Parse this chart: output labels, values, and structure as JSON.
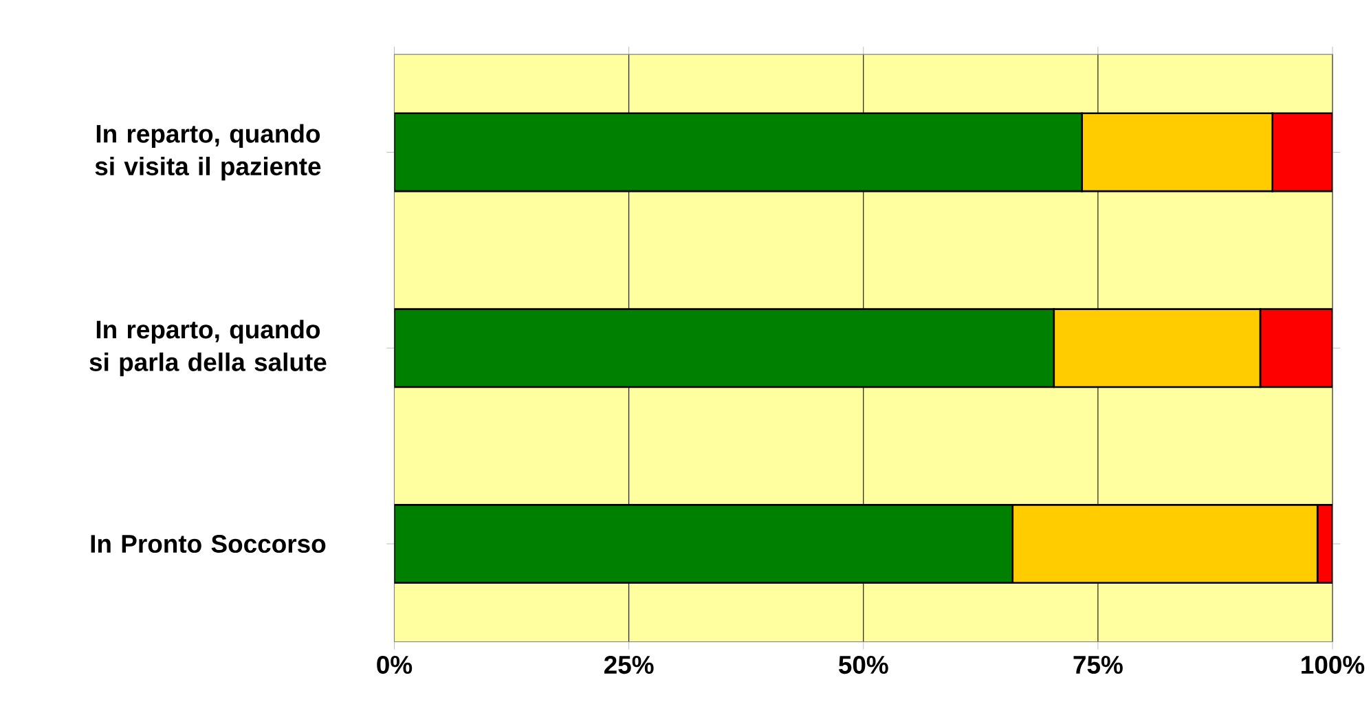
{
  "chart_data": {
    "type": "bar",
    "orientation": "horizontal",
    "stacked": true,
    "categories": [
      "In reparto, quando si visita il paziente",
      "In reparto, quando si parla della salute",
      "In Pronto Soccorso"
    ],
    "series": [
      {
        "color": "#008000",
        "values": [
          73.3,
          70.3,
          65.9
        ]
      },
      {
        "color": "#ffcc00",
        "values": [
          20.3,
          22.0,
          32.5
        ]
      },
      {
        "color": "#ff0000",
        "values": [
          6.4,
          7.7,
          1.6
        ]
      }
    ],
    "xlim": [
      0,
      100
    ],
    "xticks": [
      {
        "value": 0,
        "label": "0%"
      },
      {
        "value": 25,
        "label": "25%"
      },
      {
        "value": 50,
        "label": "50%"
      },
      {
        "value": 75,
        "label": "75%"
      },
      {
        "value": 100,
        "label": "100%"
      }
    ],
    "grid": "x"
  }
}
